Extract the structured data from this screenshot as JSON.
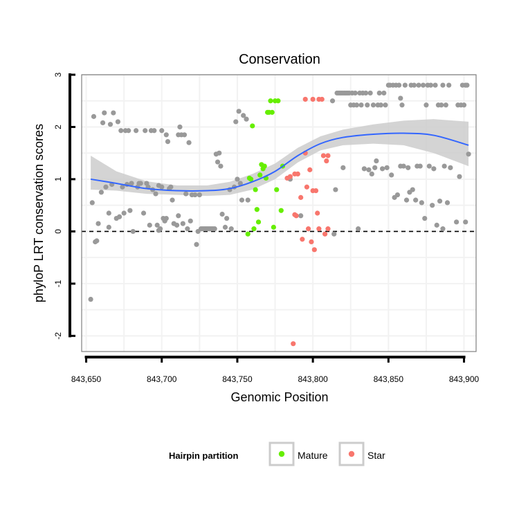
{
  "chart_data": {
    "type": "scatter",
    "title": "Conservation",
    "xlabel": "Genomic Position",
    "ylabel": "phyloP LRT conservation scores",
    "xlim": [
      843647,
      843908
    ],
    "ylim": [
      -2.3,
      3.0
    ],
    "x_ticks": [
      843650,
      843700,
      843750,
      843800,
      843850,
      843900
    ],
    "x_tick_labels": [
      "843,650",
      "843,700",
      "843,750",
      "843,800",
      "843,850",
      "843,900"
    ],
    "y_ticks": [
      -2,
      -1,
      0,
      1,
      2,
      3
    ],
    "y_tick_labels": [
      "-2",
      "-1",
      "0",
      "1",
      "2",
      "3"
    ],
    "grid": true,
    "reference_line": {
      "y": 0,
      "style": "dashed"
    },
    "legend": {
      "title": "Hairpin partition",
      "position": "bottom",
      "entries": [
        {
          "label": "Mature",
          "color": "#66ee00"
        },
        {
          "label": "Star",
          "color": "#f8766d"
        }
      ]
    },
    "colors": {
      "other": "#999999",
      "Mature": "#66ee00",
      "Star": "#f8766d",
      "smooth": "#3366ff",
      "ribbon": "#cccccc"
    },
    "series": [
      {
        "name": "Other",
        "points": [
          [
            843653,
            -1.3
          ],
          [
            843654,
            0.55
          ],
          [
            843655,
            2.2
          ],
          [
            843656,
            -0.2
          ],
          [
            843657,
            -0.18
          ],
          [
            843658,
            0.15
          ],
          [
            843660,
            0.75
          ],
          [
            843661,
            2.08
          ],
          [
            843662,
            2.27
          ],
          [
            843663,
            0.85
          ],
          [
            843665,
            0.08
          ],
          [
            843665,
            0.35
          ],
          [
            843666,
            2.05
          ],
          [
            843667,
            0.9
          ],
          [
            843668,
            2.27
          ],
          [
            843670,
            0.25
          ],
          [
            843671,
            2.1
          ],
          [
            843672,
            0.28
          ],
          [
            843673,
            1.93
          ],
          [
            843674,
            0.85
          ],
          [
            843675,
            0.35
          ],
          [
            843676,
            1.93
          ],
          [
            843677,
            0.9
          ],
          [
            843678,
            1.93
          ],
          [
            843679,
            0.4
          ],
          [
            843680,
            0.92
          ],
          [
            843681,
            0
          ],
          [
            843683,
            1.93
          ],
          [
            843684,
            0.85
          ],
          [
            843685,
            0.92
          ],
          [
            843686,
            0.92
          ],
          [
            843688,
            0.35
          ],
          [
            843689,
            1.93
          ],
          [
            843690,
            0.92
          ],
          [
            843691,
            0.85
          ],
          [
            843692,
            0.12
          ],
          [
            843693,
            1.93
          ],
          [
            843694,
            0.8
          ],
          [
            843695,
            1.93
          ],
          [
            843696,
            0.72
          ],
          [
            843697,
            0.12
          ],
          [
            843698,
            0.88
          ],
          [
            843698,
            0.02
          ],
          [
            843699,
            0.05
          ],
          [
            843700,
            1.93
          ],
          [
            843700,
            0.85
          ],
          [
            843701,
            0.25
          ],
          [
            843702,
            0.2
          ],
          [
            843703,
            1.85
          ],
          [
            843703,
            0.25
          ],
          [
            843704,
            1.72
          ],
          [
            843705,
            0.82
          ],
          [
            843706,
            0.85
          ],
          [
            843707,
            0.6
          ],
          [
            843708,
            0.15
          ],
          [
            843710,
            0.12
          ],
          [
            843711,
            1.85
          ],
          [
            843711,
            0.3
          ],
          [
            843712,
            2.0
          ],
          [
            843713,
            1.85
          ],
          [
            843714,
            0.15
          ],
          [
            843715,
            1.85
          ],
          [
            843716,
            0.72
          ],
          [
            843717,
            0.05
          ],
          [
            843718,
            1.7
          ],
          [
            843719,
            0.2
          ],
          [
            843720,
            0.7
          ],
          [
            843722,
            0.7
          ],
          [
            843723,
            -0.25
          ],
          [
            843724,
            0.0
          ],
          [
            843725,
            0.7
          ],
          [
            843726,
            0.05
          ],
          [
            843727,
            0.05
          ],
          [
            843728,
            0.05
          ],
          [
            843729,
            0.05
          ],
          [
            843730,
            0.05
          ],
          [
            843731,
            0.05
          ],
          [
            843732,
            0.05
          ],
          [
            843733,
            0.05
          ],
          [
            843734,
            0.05
          ],
          [
            843735,
            0.05
          ],
          [
            843736,
            1.48
          ],
          [
            843737,
            1.33
          ],
          [
            843738,
            1.5
          ],
          [
            843739,
            1.25
          ],
          [
            843740,
            0.33
          ],
          [
            843742,
            0.08
          ],
          [
            843743,
            0.25
          ],
          [
            843745,
            0.8
          ],
          [
            843746,
            0.05
          ],
          [
            843748,
            0.85
          ],
          [
            843749,
            2.1
          ],
          [
            843750,
            1.0
          ],
          [
            843751,
            2.3
          ],
          [
            843752,
            0.92
          ],
          [
            843753,
            0.6
          ],
          [
            843754,
            2.22
          ],
          [
            843756,
            2.15
          ],
          [
            843757,
            0.6
          ],
          [
            843785,
            1.0
          ],
          [
            843792,
            0.3
          ],
          [
            843813,
            2.5
          ],
          [
            843814,
            -0.05
          ],
          [
            843815,
            0.8
          ],
          [
            843816,
            2.65
          ],
          [
            843817,
            2.65
          ],
          [
            843818,
            2.65
          ],
          [
            843819,
            2.65
          ],
          [
            843820,
            1.22
          ],
          [
            843820,
            2.65
          ],
          [
            843821,
            2.65
          ],
          [
            843822,
            2.65
          ],
          [
            843823,
            2.65
          ],
          [
            843824,
            2.65
          ],
          [
            843825,
            2.42
          ],
          [
            843826,
            2.65
          ],
          [
            843827,
            2.42
          ],
          [
            843828,
            2.65
          ],
          [
            843829,
            2.42
          ],
          [
            843830,
            0.05
          ],
          [
            843831,
            2.65
          ],
          [
            843832,
            2.42
          ],
          [
            843833,
            2.65
          ],
          [
            843834,
            1.2
          ],
          [
            843835,
            2.65
          ],
          [
            843836,
            2.42
          ],
          [
            843837,
            1.18
          ],
          [
            843838,
            2.65
          ],
          [
            843839,
            1.1
          ],
          [
            843840,
            2.42
          ],
          [
            843841,
            1.22
          ],
          [
            843842,
            1.35
          ],
          [
            843843,
            2.42
          ],
          [
            843844,
            2.65
          ],
          [
            843845,
            2.42
          ],
          [
            843846,
            1.2
          ],
          [
            843847,
            2.65
          ],
          [
            843848,
            2.42
          ],
          [
            843849,
            1.22
          ],
          [
            843850,
            2.8
          ],
          [
            843851,
            2.8
          ],
          [
            843852,
            1.08
          ],
          [
            843853,
            2.8
          ],
          [
            843854,
            0.65
          ],
          [
            843855,
            2.8
          ],
          [
            843856,
            0.7
          ],
          [
            843857,
            2.8
          ],
          [
            843858,
            1.25
          ],
          [
            843858,
            2.55
          ],
          [
            843859,
            2.42
          ],
          [
            843860,
            1.25
          ],
          [
            843861,
            2.8
          ],
          [
            843862,
            0.6
          ],
          [
            843863,
            1.22
          ],
          [
            843864,
            0.75
          ],
          [
            843865,
            2.8
          ],
          [
            843866,
            0.8
          ],
          [
            843867,
            2.8
          ],
          [
            843868,
            0.6
          ],
          [
            843869,
            1.25
          ],
          [
            843870,
            2.8
          ],
          [
            843871,
            1.25
          ],
          [
            843872,
            0.55
          ],
          [
            843873,
            2.8
          ],
          [
            843874,
            0.25
          ],
          [
            843875,
            2.42
          ],
          [
            843876,
            2.8
          ],
          [
            843877,
            1.25
          ],
          [
            843878,
            2.8
          ],
          [
            843879,
            0.5
          ],
          [
            843880,
            1.2
          ],
          [
            843881,
            2.8
          ],
          [
            843882,
            0.12
          ],
          [
            843883,
            2.42
          ],
          [
            843884,
            0.58
          ],
          [
            843885,
            2.42
          ],
          [
            843886,
            2.8
          ],
          [
            843886,
            0.05
          ],
          [
            843887,
            1.25
          ],
          [
            843888,
            2.42
          ],
          [
            843889,
            0.55
          ],
          [
            843890,
            2.8
          ],
          [
            843891,
            1.22
          ],
          [
            843895,
            0.18
          ],
          [
            843896,
            2.42
          ],
          [
            843897,
            1.05
          ],
          [
            843898,
            2.42
          ],
          [
            843899,
            2.8
          ],
          [
            843900,
            2.42
          ],
          [
            843901,
            0.18
          ],
          [
            843901,
            2.8
          ],
          [
            843902,
            2.8
          ],
          [
            843903,
            1.48
          ]
        ]
      },
      {
        "name": "Mature",
        "points": [
          [
            843757,
            -0.05
          ],
          [
            843758,
            1.02
          ],
          [
            843759,
            1.0
          ],
          [
            843760,
            2.02
          ],
          [
            843761,
            0.05
          ],
          [
            843762,
            0.8
          ],
          [
            843763,
            0.42
          ],
          [
            843764,
            0.18
          ],
          [
            843765,
            1.08
          ],
          [
            843766,
            1.28
          ],
          [
            843767,
            1.2
          ],
          [
            843768,
            1.25
          ],
          [
            843769,
            1.02
          ],
          [
            843770,
            2.28
          ],
          [
            843771,
            2.28
          ],
          [
            843772,
            2.5
          ],
          [
            843773,
            2.28
          ],
          [
            843774,
            0.08
          ],
          [
            843775,
            2.5
          ],
          [
            843776,
            0.8
          ],
          [
            843777,
            2.5
          ],
          [
            843779,
            0.4
          ],
          [
            843780,
            1.25
          ]
        ]
      },
      {
        "name": "Star",
        "points": [
          [
            843783,
            1.02
          ],
          [
            843785,
            1.05
          ],
          [
            843787,
            -2.15
          ],
          [
            843788,
            1.1
          ],
          [
            843788,
            0.32
          ],
          [
            843789,
            0.3
          ],
          [
            843790,
            1.1
          ],
          [
            843792,
            0.65
          ],
          [
            843793,
            -0.15
          ],
          [
            843795,
            2.53
          ],
          [
            843795,
            1.5
          ],
          [
            843796,
            0.85
          ],
          [
            843797,
            0.05
          ],
          [
            843798,
            1.18
          ],
          [
            843799,
            -0.2
          ],
          [
            843800,
            0.78
          ],
          [
            843800,
            2.53
          ],
          [
            843801,
            -0.35
          ],
          [
            843802,
            0.78
          ],
          [
            843803,
            0.35
          ],
          [
            843804,
            0.05
          ],
          [
            843804,
            2.53
          ],
          [
            843806,
            2.53
          ],
          [
            843807,
            1.45
          ],
          [
            843808,
            -0.05
          ],
          [
            843809,
            1.35
          ],
          [
            843810,
            1.45
          ],
          [
            843810,
            0.05
          ]
        ]
      }
    ],
    "smooth": {
      "x": [
        843653,
        843670,
        843690,
        843710,
        843730,
        843745,
        843760,
        843775,
        843790,
        843805,
        843820,
        843840,
        843860,
        843880,
        843903
      ],
      "y": [
        1.0,
        0.92,
        0.82,
        0.78,
        0.78,
        0.82,
        0.95,
        1.15,
        1.45,
        1.68,
        1.8,
        1.86,
        1.88,
        1.84,
        1.65
      ],
      "lower": [
        0.8,
        0.78,
        0.72,
        0.7,
        0.68,
        0.7,
        0.8,
        1.0,
        1.32,
        1.55,
        1.65,
        1.68,
        1.65,
        1.5,
        1.25
      ],
      "upper": [
        1.45,
        1.15,
        0.96,
        0.88,
        0.88,
        0.95,
        1.1,
        1.3,
        1.6,
        1.82,
        1.95,
        2.05,
        2.12,
        2.15,
        2.1
      ]
    }
  }
}
